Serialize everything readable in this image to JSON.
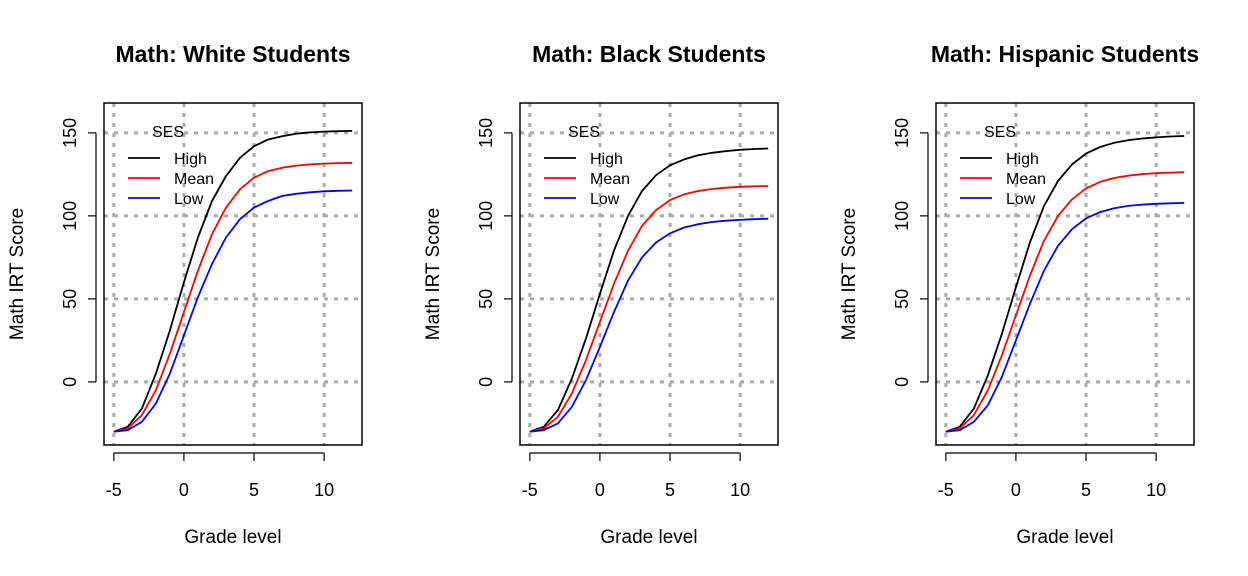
{
  "chart_data": [
    {
      "type": "line",
      "title": "Math: White Students",
      "xlabel": "Grade level",
      "ylabel": "Math  IRT Score",
      "xlim": [
        -5.7,
        12.7
      ],
      "ylim": [
        -38,
        168
      ],
      "x_ticks": [
        -5,
        0,
        5,
        10
      ],
      "y_ticks": [
        0,
        50,
        100,
        150
      ],
      "grid": true,
      "legend_title": "SES",
      "legend_position": "top-left",
      "series": [
        {
          "name": "High",
          "color": "#000000",
          "points": [
            [
              -5,
              -30
            ],
            [
              -4,
              -27
            ],
            [
              -3,
              -16
            ],
            [
              -2,
              5
            ],
            [
              -1,
              31
            ],
            [
              0,
              60
            ],
            [
              1,
              87
            ],
            [
              2,
              109
            ],
            [
              3,
              124
            ],
            [
              4,
              135
            ],
            [
              5,
              142
            ],
            [
              6,
              146
            ],
            [
              7,
              148
            ],
            [
              8,
              149.5
            ],
            [
              9,
              150.3
            ],
            [
              10,
              150.8
            ],
            [
              11,
              151
            ],
            [
              12,
              151.2
            ]
          ]
        },
        {
          "name": "Mean",
          "color": "#ff0000",
          "points": [
            [
              -5,
              -30
            ],
            [
              -4,
              -28
            ],
            [
              -3,
              -20
            ],
            [
              -2,
              -5
            ],
            [
              -1,
              17
            ],
            [
              0,
              42
            ],
            [
              1,
              67
            ],
            [
              2,
              89
            ],
            [
              3,
              105
            ],
            [
              4,
              116
            ],
            [
              5,
              123
            ],
            [
              6,
              127
            ],
            [
              7,
              129
            ],
            [
              8,
              130.3
            ],
            [
              9,
              131
            ],
            [
              10,
              131.5
            ],
            [
              11,
              131.8
            ],
            [
              12,
              132
            ]
          ]
        },
        {
          "name": "Low",
          "color": "#0000ff",
          "points": [
            [
              -5,
              -30
            ],
            [
              -4,
              -29
            ],
            [
              -3,
              -24
            ],
            [
              -2,
              -13
            ],
            [
              -1,
              5
            ],
            [
              0,
              28
            ],
            [
              1,
              51
            ],
            [
              2,
              71
            ],
            [
              3,
              87
            ],
            [
              4,
              98
            ],
            [
              5,
              105
            ],
            [
              6,
              109
            ],
            [
              7,
              112
            ],
            [
              8,
              113.3
            ],
            [
              9,
              114.2
            ],
            [
              10,
              114.8
            ],
            [
              11,
              115.1
            ],
            [
              12,
              115.3
            ]
          ]
        }
      ]
    },
    {
      "type": "line",
      "title": "Math: Black Students",
      "xlabel": "Grade level",
      "ylabel": "Math  IRT Score",
      "xlim": [
        -5.7,
        12.7
      ],
      "ylim": [
        -38,
        168
      ],
      "x_ticks": [
        -5,
        0,
        5,
        10
      ],
      "y_ticks": [
        0,
        50,
        100,
        150
      ],
      "grid": true,
      "legend_title": "SES",
      "legend_position": "top-left",
      "series": [
        {
          "name": "High",
          "color": "#000000",
          "points": [
            [
              -5,
              -30
            ],
            [
              -4,
              -27
            ],
            [
              -3,
              -17
            ],
            [
              -2,
              2
            ],
            [
              -1,
              26
            ],
            [
              0,
              53
            ],
            [
              1,
              79
            ],
            [
              2,
              100
            ],
            [
              3,
              115
            ],
            [
              4,
              124.5
            ],
            [
              5,
              130.5
            ],
            [
              6,
              134
            ],
            [
              7,
              136.5
            ],
            [
              8,
              138
            ],
            [
              9,
              139
            ],
            [
              10,
              139.8
            ],
            [
              11,
              140.3
            ],
            [
              12,
              140.6
            ]
          ]
        },
        {
          "name": "Mean",
          "color": "#ff0000",
          "points": [
            [
              -5,
              -30
            ],
            [
              -4,
              -28
            ],
            [
              -3,
              -21
            ],
            [
              -2,
              -7
            ],
            [
              -1,
              13
            ],
            [
              0,
              36
            ],
            [
              1,
              59
            ],
            [
              2,
              79
            ],
            [
              3,
              94
            ],
            [
              4,
              103.5
            ],
            [
              5,
              109.5
            ],
            [
              6,
              113
            ],
            [
              7,
              115
            ],
            [
              8,
              116.2
            ],
            [
              9,
              117
            ],
            [
              10,
              117.5
            ],
            [
              11,
              117.8
            ],
            [
              12,
              118
            ]
          ]
        },
        {
          "name": "Low",
          "color": "#0000ff",
          "points": [
            [
              -5,
              -30
            ],
            [
              -4,
              -29
            ],
            [
              -3,
              -25
            ],
            [
              -2,
              -15
            ],
            [
              -1,
              1
            ],
            [
              0,
              21
            ],
            [
              1,
              42
            ],
            [
              2,
              61
            ],
            [
              3,
              75
            ],
            [
              4,
              84
            ],
            [
              5,
              89.5
            ],
            [
              6,
              93
            ],
            [
              7,
              95
            ],
            [
              8,
              96.3
            ],
            [
              9,
              97.1
            ],
            [
              10,
              97.6
            ],
            [
              11,
              98
            ],
            [
              12,
              98.3
            ]
          ]
        }
      ]
    },
    {
      "type": "line",
      "title": "Math: Hispanic Students",
      "xlabel": "Grade level",
      "ylabel": "Math  IRT Score",
      "xlim": [
        -5.7,
        12.7
      ],
      "ylim": [
        -38,
        168
      ],
      "x_ticks": [
        -5,
        0,
        5,
        10
      ],
      "y_ticks": [
        0,
        50,
        100,
        150
      ],
      "grid": true,
      "legend_title": "SES",
      "legend_position": "top-left",
      "series": [
        {
          "name": "High",
          "color": "#000000",
          "points": [
            [
              -5,
              -30
            ],
            [
              -4,
              -27
            ],
            [
              -3,
              -16
            ],
            [
              -2,
              4
            ],
            [
              -1,
              29
            ],
            [
              0,
              57
            ],
            [
              1,
              84
            ],
            [
              2,
              106
            ],
            [
              3,
              121
            ],
            [
              4,
              131
            ],
            [
              5,
              137.5
            ],
            [
              6,
              141.5
            ],
            [
              7,
              144
            ],
            [
              8,
              145.6
            ],
            [
              9,
              146.6
            ],
            [
              10,
              147.3
            ],
            [
              11,
              147.8
            ],
            [
              12,
              148.1
            ]
          ]
        },
        {
          "name": "Mean",
          "color": "#ff0000",
          "points": [
            [
              -5,
              -30
            ],
            [
              -4,
              -28
            ],
            [
              -3,
              -20
            ],
            [
              -2,
              -5
            ],
            [
              -1,
              16
            ],
            [
              0,
              40
            ],
            [
              1,
              64
            ],
            [
              2,
              85
            ],
            [
              3,
              100
            ],
            [
              4,
              110
            ],
            [
              5,
              116.5
            ],
            [
              6,
              120.5
            ],
            [
              7,
              122.8
            ],
            [
              8,
              124.2
            ],
            [
              9,
              125.1
            ],
            [
              10,
              125.7
            ],
            [
              11,
              126.1
            ],
            [
              12,
              126.4
            ]
          ]
        },
        {
          "name": "Low",
          "color": "#0000ff",
          "points": [
            [
              -5,
              -30
            ],
            [
              -4,
              -29
            ],
            [
              -3,
              -24
            ],
            [
              -2,
              -14
            ],
            [
              -1,
              3
            ],
            [
              0,
              25
            ],
            [
              1,
              47
            ],
            [
              2,
              67
            ],
            [
              3,
              82
            ],
            [
              4,
              92
            ],
            [
              5,
              98.5
            ],
            [
              6,
              102.3
            ],
            [
              7,
              104.6
            ],
            [
              8,
              106
            ],
            [
              9,
              106.8
            ],
            [
              10,
              107.3
            ],
            [
              11,
              107.6
            ],
            [
              12,
              107.8
            ]
          ]
        }
      ]
    }
  ]
}
